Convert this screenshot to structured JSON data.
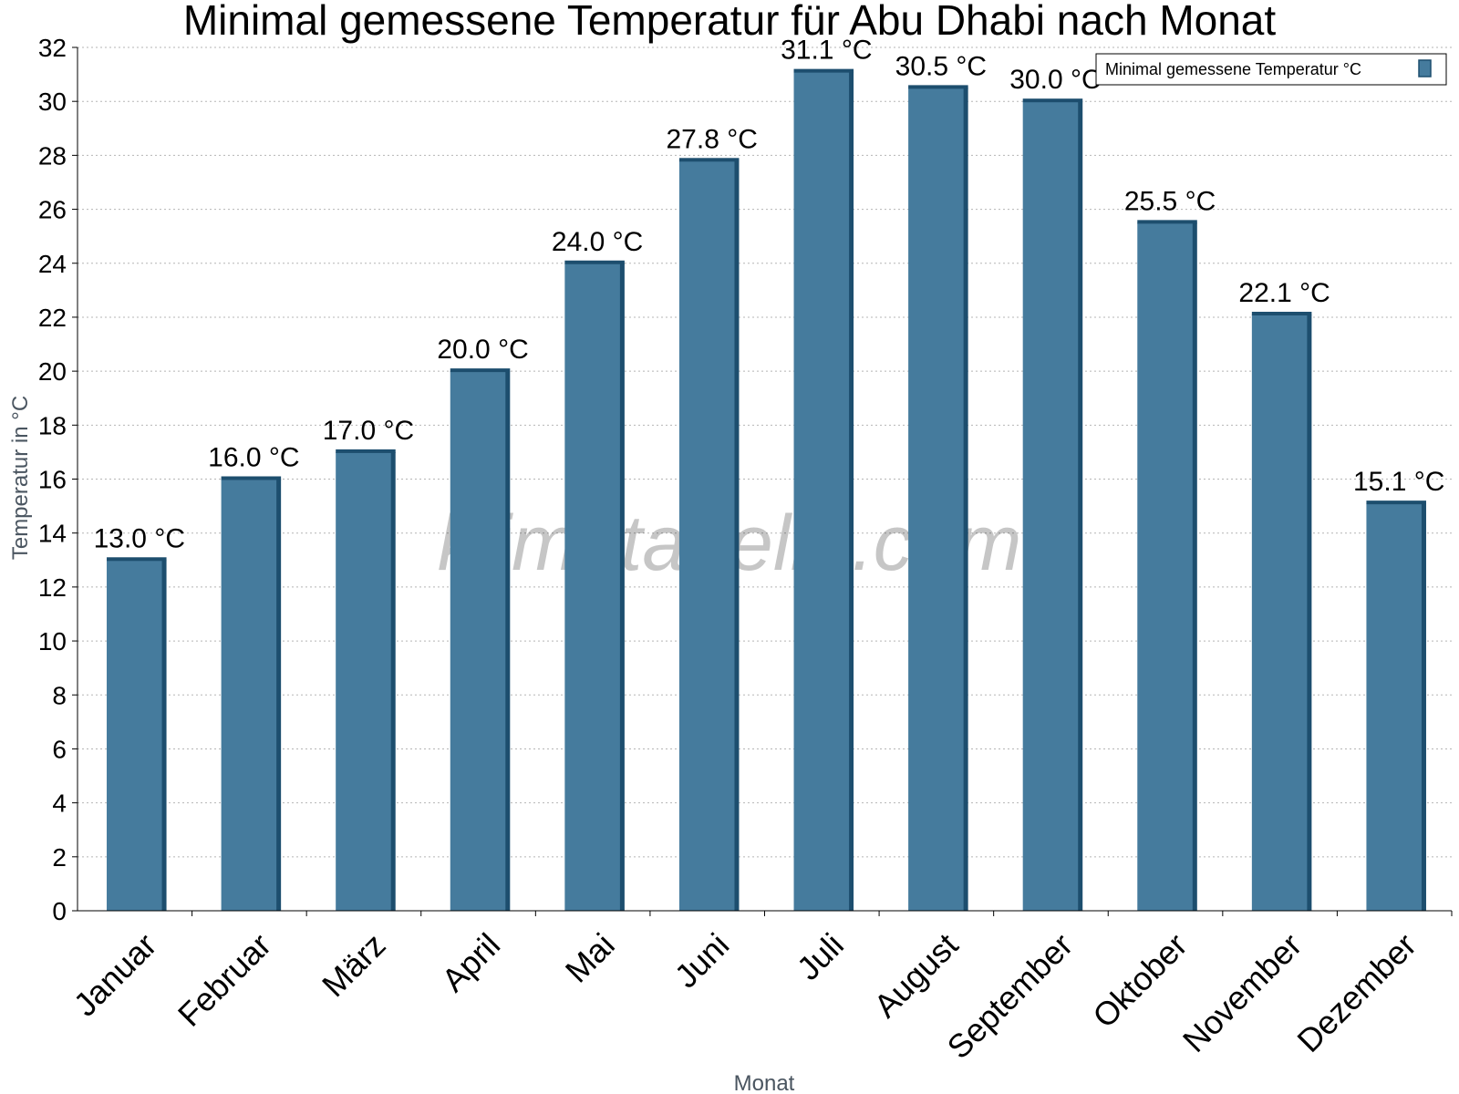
{
  "chart_data": {
    "type": "bar",
    "title": "Minimal gemessene Temperatur für Abu Dhabi nach Monat",
    "xlabel": "Monat",
    "ylabel": "Temperatur in °C",
    "ylim": [
      0,
      32
    ],
    "ytick_step": 2,
    "grid": true,
    "legend_position": "top-right",
    "categories": [
      "Januar",
      "Februar",
      "März",
      "April",
      "Mai",
      "Juni",
      "Juli",
      "August",
      "September",
      "Oktober",
      "November",
      "Dezember"
    ],
    "series": [
      {
        "name": "Minimal gemessene Temperatur °C",
        "values": [
          13.0,
          16.0,
          17.0,
          20.0,
          24.0,
          27.8,
          31.1,
          30.5,
          30.0,
          25.5,
          22.1,
          15.1
        ],
        "labels": [
          "13.0 °C",
          "16.0 °C",
          "17.0 °C",
          "20.0 °C",
          "24.0 °C",
          "27.8 °C",
          "31.1 °C",
          "30.5 °C",
          "30.0 °C",
          "25.5 °C",
          "22.1 °C",
          "15.1 °C"
        ],
        "color": "#457b9d",
        "edge_color": "#1d4e6e"
      }
    ],
    "watermark": "klimatabelle.com"
  }
}
